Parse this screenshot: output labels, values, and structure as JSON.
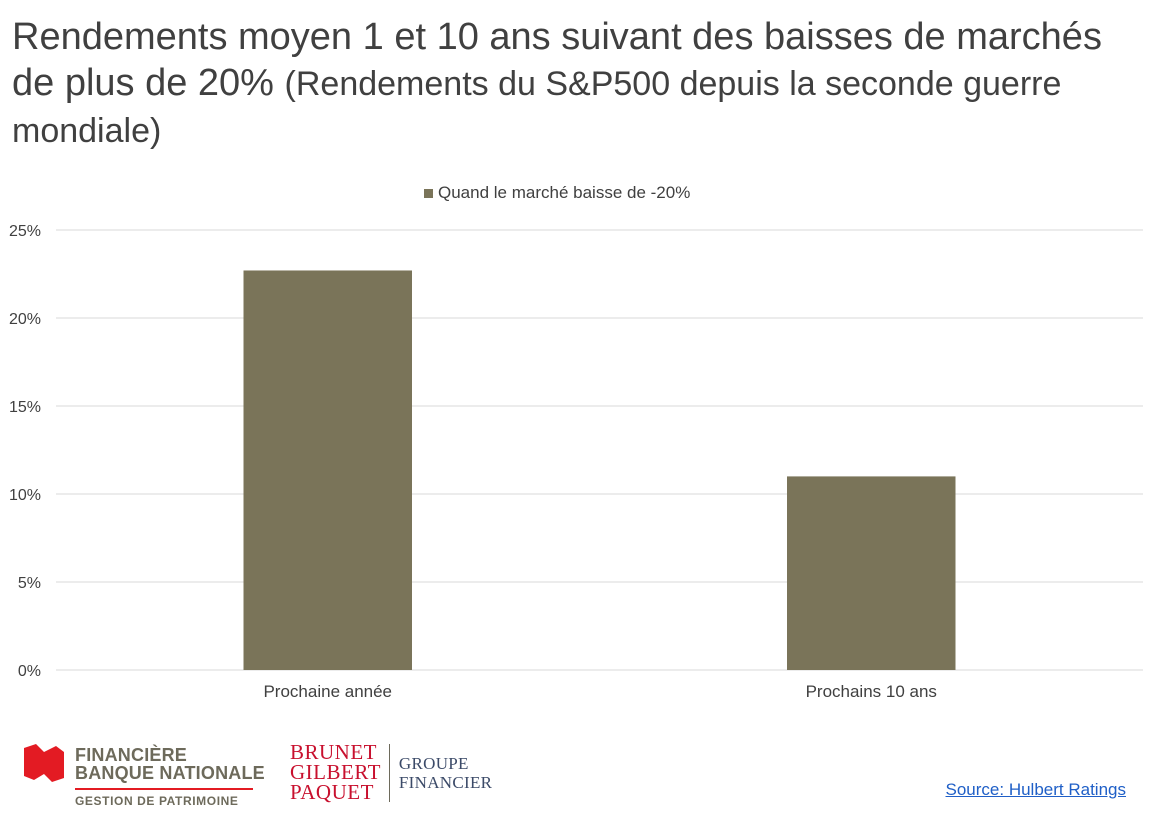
{
  "title": {
    "main": "Rendements moyen 1 et 10 ans suivant des baisses de marchés de plus de 20%",
    "sub": "(Rendements du S&P500 depuis la seconde guerre mondiale)"
  },
  "chart_data": {
    "type": "bar",
    "categories": [
      "Prochaine année",
      "Prochains 10 ans"
    ],
    "series": [
      {
        "name": "Quand le marché baisse de -20%",
        "values": [
          22.7,
          11.0
        ],
        "color": "#7a7459"
      }
    ],
    "ylim": [
      0,
      25
    ],
    "yticks": [
      0,
      5,
      10,
      15,
      20,
      25
    ],
    "ytick_labels": [
      "0%",
      "5%",
      "10%",
      "15%",
      "20%",
      "25%"
    ],
    "ytick_suffix": "%",
    "grid": true,
    "legend_position": "top-center",
    "xlabel": "",
    "ylabel": ""
  },
  "branding": {
    "fbn": {
      "line1": "FINANCIÈRE",
      "line2": "BANQUE NATIONALE",
      "line3": "GESTION DE PATRIMOINE",
      "accent": "#e31b23"
    },
    "bgp": {
      "names": [
        "BRUNET",
        "GILBERT",
        "PAQUET"
      ],
      "groupe": [
        "GROUPE",
        "FINANCIER"
      ],
      "accent": "#c8102e"
    }
  },
  "source": {
    "label": "Source: Hulbert Ratings"
  }
}
